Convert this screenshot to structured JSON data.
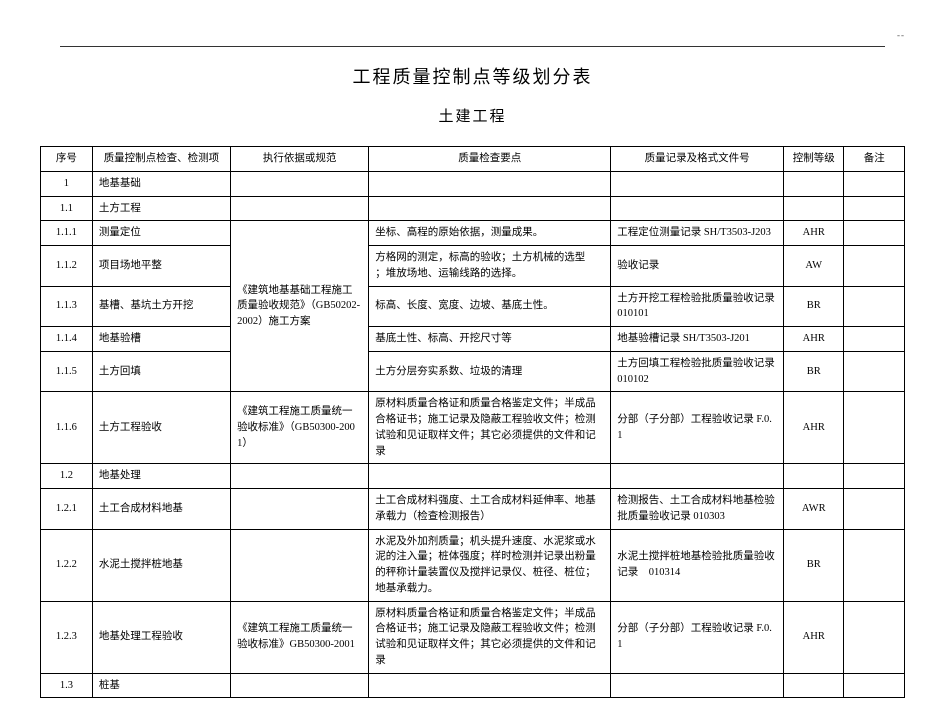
{
  "page_mark": "--",
  "title": "工程质量控制点等级划分表",
  "subtitle": "土建工程",
  "headers": {
    "seq": "序号",
    "item": "质量控制点检查、检测项",
    "basis": "执行依据或规范",
    "req": "质量检查要点",
    "rec": "质量记录及格式文件号",
    "level": "控制等级",
    "note": "备注"
  },
  "rows": [
    {
      "seq": "1",
      "item": "地基基础",
      "section": true
    },
    {
      "seq": "1.1",
      "item": "土方工程",
      "section": true
    },
    {
      "seq": "1.1.1",
      "item": "测量定位",
      "basis_rowspan": 5,
      "basis": "《建筑地基基础工程施工质量验收规范》（GB50202-2002）施工方案",
      "req": "坐标、高程的原始依据，测量成果。",
      "rec": "工程定位测量记录 SH/T3503-J203",
      "level": "AHR"
    },
    {
      "seq": "1.1.2",
      "item": "项目场地平整",
      "req": "方格网的测定，标高的验收；土方机械的选型　　；堆放场地、运输线路的选择。",
      "rec": "验收记录",
      "level": "AW"
    },
    {
      "seq": "1.1.3",
      "item": "基槽、基坑土方开挖",
      "req": "标高、长度、宽度、边坡、基底土性。",
      "rec": "土方开挖工程检验批质量验收记录　010101",
      "level": "BR"
    },
    {
      "seq": "1.1.4",
      "item": "地基验槽",
      "req": "基底土性、标高、开挖尺寸等",
      "rec": "地基验槽记录 SH/T3503-J201",
      "level": "AHR"
    },
    {
      "seq": "1.1.5",
      "item": "土方回填",
      "req": "土方分层夯实系数、垃圾的清理",
      "rec": "土方回填工程检验批质量验收记录　010102",
      "level": "BR"
    },
    {
      "seq": "1.1.6",
      "item": "土方工程验收",
      "basis": "《建筑工程施工质量统一验收标准》（GB50300-2001）",
      "req": "原材料质量合格证和质量合格鉴定文件；半成品合格证书；施工记录及隐蔽工程验收文件；检测试验和见证取样文件；其它必须提供的文件和记录",
      "rec": "分部（子分部）工程验收记录 F.0.1",
      "level": "AHR"
    },
    {
      "seq": "1.2",
      "item": "地基处理",
      "section": true
    },
    {
      "seq": "1.2.1",
      "item": "土工合成材料地基",
      "req": "土工合成材料强度、土工合成材料延伸率、地基承载力（检查检测报告）",
      "rec": "检测报告、土工合成材料地基检验批质量验收记录 010303",
      "level": "AWR"
    },
    {
      "seq": "1.2.2",
      "item": "水泥土搅拌桩地基",
      "req": "水泥及外加剂质量；机头提升速度、水泥浆或水泥的注入量；桩体强度；样时检测并记录出粉量的秤称计量装置仪及搅拌记录仪、桩径、桩位；地基承载力。",
      "rec": "水泥土搅拌桩地基检验批质量验收记录　010314",
      "level": "BR"
    },
    {
      "seq": "1.2.3",
      "item": "地基处理工程验收",
      "basis": "《建筑工程施工质量统一验收标准》GB50300-2001",
      "req": "原材料质量合格证和质量合格鉴定文件；半成品合格证书；施工记录及隐蔽工程验收文件；检测试验和见证取样文件；其它必须提供的文件和记录",
      "rec": "分部（子分部）工程验收记录 F.0.1",
      "level": "AHR"
    },
    {
      "seq": "1.3",
      "item": "桩基",
      "section": true
    }
  ]
}
